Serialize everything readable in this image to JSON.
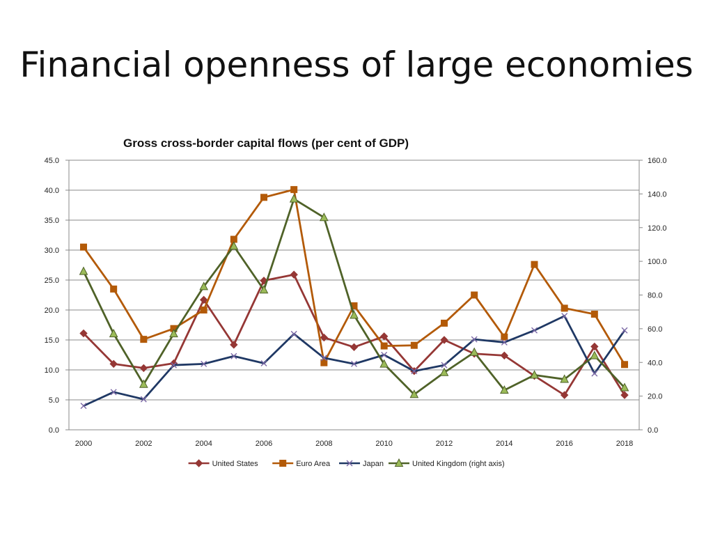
{
  "slide": {
    "title": "Financial openness of large economies"
  },
  "chart_data": {
    "type": "line",
    "title": "Gross cross-border capital flows (per cent of GDP)",
    "xlabel": "",
    "ylabel": "",
    "x": [
      2000,
      2001,
      2002,
      2003,
      2004,
      2005,
      2006,
      2007,
      2008,
      2009,
      2010,
      2011,
      2012,
      2013,
      2014,
      2015,
      2016,
      2017,
      2018
    ],
    "x_tick_labels": [
      "2000",
      "2002",
      "2004",
      "2006",
      "2008",
      "2010",
      "2012",
      "2014",
      "2016",
      "2018"
    ],
    "ylim_left": [
      0,
      45
    ],
    "ylim_right": [
      0,
      160
    ],
    "y_left_ticks": [
      "0.0",
      "5.0",
      "10.0",
      "15.0",
      "20.0",
      "25.0",
      "30.0",
      "35.0",
      "40.0",
      "45.0"
    ],
    "y_right_ticks": [
      "0.0",
      "20.0",
      "40.0",
      "60.0",
      "80.0",
      "100.0",
      "120.0",
      "140.0",
      "160.0"
    ],
    "grid": true,
    "legend_position": "bottom",
    "series": [
      {
        "name": "United States",
        "axis": "left",
        "color": "#953735",
        "marker": "diamond",
        "values": [
          16.1,
          11.0,
          10.3,
          11.1,
          21.7,
          14.2,
          24.9,
          25.9,
          15.4,
          13.8,
          15.6,
          9.8,
          15.0,
          12.7,
          12.4,
          9.0,
          5.8,
          13.9,
          5.8
        ]
      },
      {
        "name": "Euro Area",
        "axis": "left",
        "color": "#B35A08",
        "marker": "square",
        "values": [
          30.5,
          23.5,
          15.1,
          16.9,
          20.0,
          31.8,
          38.8,
          40.1,
          11.2,
          20.7,
          14.0,
          14.1,
          17.8,
          22.5,
          15.5,
          27.6,
          20.3,
          19.3,
          10.9
        ]
      },
      {
        "name": "Japan",
        "axis": "left",
        "color": "#1F3864",
        "marker": "x",
        "values": [
          4.0,
          6.3,
          5.1,
          10.8,
          11.0,
          12.3,
          11.1,
          16.0,
          12.0,
          11.0,
          12.5,
          9.8,
          10.8,
          15.1,
          14.6,
          16.6,
          19.0,
          9.4,
          16.6
        ]
      },
      {
        "name": "United Kingdom (right axis)",
        "axis": "right",
        "color": "#4F6228",
        "markerFill": "#9BBB59",
        "marker": "triangle",
        "values": [
          94.0,
          57.0,
          27.0,
          57.0,
          85.0,
          109.0,
          83.0,
          137.0,
          126.0,
          68.0,
          39.0,
          21.0,
          34.0,
          46.0,
          23.5,
          32.5,
          30.0,
          44.0,
          25.0
        ]
      }
    ]
  }
}
